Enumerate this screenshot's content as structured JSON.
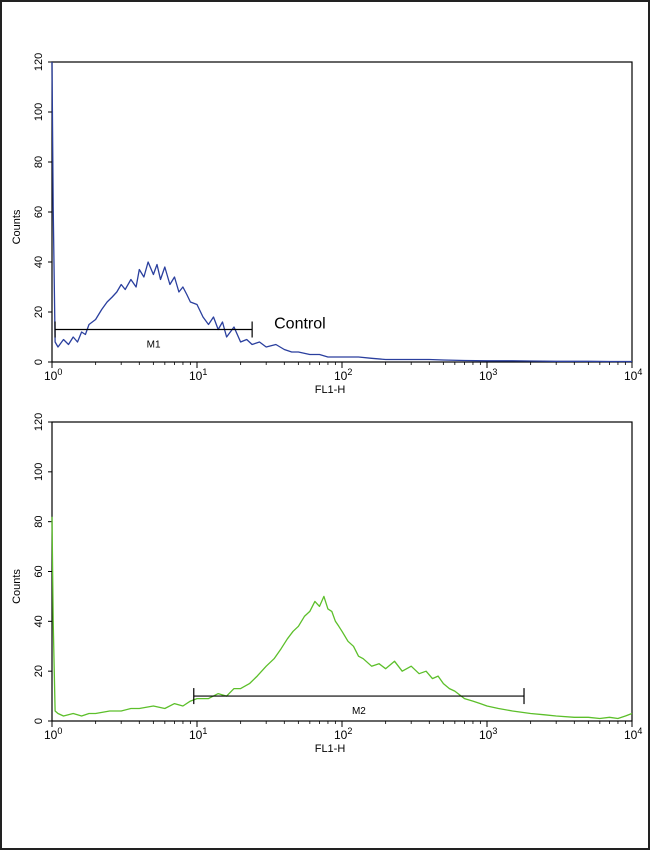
{
  "chart_data": [
    {
      "type": "line",
      "xlabel": "FL1-H",
      "ylabel": "Counts",
      "xscale": "log",
      "xlim": [
        1,
        10000
      ],
      "ylim": [
        0,
        120
      ],
      "x_ticks": [
        {
          "value": 1,
          "base": "10",
          "exp": "0"
        },
        {
          "value": 10,
          "base": "10",
          "exp": "1"
        },
        {
          "value": 100,
          "base": "10",
          "exp": "2"
        },
        {
          "value": 1000,
          "base": "10",
          "exp": "3"
        },
        {
          "value": 10000,
          "base": "10",
          "exp": "4"
        }
      ],
      "y_ticks": [
        0,
        20,
        40,
        60,
        80,
        100,
        120
      ],
      "annotation": "Control",
      "gate": {
        "label": "M1",
        "x_start": 1.05,
        "x_end": 24,
        "y": 13
      },
      "color": "#2a3f9e",
      "series": [
        {
          "x": [
            1.0,
            1.02,
            1.05,
            1.1,
            1.2,
            1.3,
            1.4,
            1.5,
            1.6,
            1.7,
            1.8,
            2.0,
            2.2,
            2.4,
            2.6,
            2.8,
            3.0,
            3.2,
            3.5,
            3.8,
            4.0,
            4.3,
            4.6,
            5.0,
            5.3,
            5.6,
            6.0,
            6.5,
            7.0,
            7.5,
            8.0,
            8.5,
            9.0,
            10,
            11,
            12,
            13,
            14,
            15,
            16,
            18,
            20,
            22,
            24,
            27,
            30,
            35,
            40,
            45,
            50,
            60,
            70,
            80,
            100,
            130,
            160,
            200,
            250,
            300,
            400,
            500,
            700,
            1000,
            1500,
            2000,
            3000,
            5000,
            7000,
            10000
          ],
          "y": [
            120,
            62,
            8,
            6,
            9,
            7,
            10,
            8,
            12,
            11,
            15,
            17,
            21,
            24,
            26,
            28,
            31,
            29,
            33,
            30,
            37,
            34,
            40,
            35,
            39,
            33,
            38,
            31,
            34,
            28,
            30,
            27,
            24,
            23,
            18,
            15,
            18,
            13,
            16,
            10,
            14,
            8,
            9,
            7,
            8,
            6,
            7,
            5,
            4,
            4,
            3,
            3,
            2,
            2,
            2,
            1.5,
            1,
            1,
            1,
            1,
            0.8,
            0.6,
            0.5,
            0.5,
            0.4,
            0.3,
            0.3,
            0.2,
            0.2
          ]
        }
      ]
    },
    {
      "type": "line",
      "xlabel": "FL1-H",
      "ylabel": "Counts",
      "xscale": "log",
      "xlim": [
        1,
        10000
      ],
      "ylim": [
        0,
        120
      ],
      "x_ticks": [
        {
          "value": 1,
          "base": "10",
          "exp": "0"
        },
        {
          "value": 10,
          "base": "10",
          "exp": "1"
        },
        {
          "value": 100,
          "base": "10",
          "exp": "2"
        },
        {
          "value": 1000,
          "base": "10",
          "exp": "3"
        },
        {
          "value": 10000,
          "base": "10",
          "exp": "4"
        }
      ],
      "y_ticks": [
        0,
        20,
        40,
        60,
        80,
        100,
        120
      ],
      "gate": {
        "label": "M2",
        "x_start": 9.5,
        "x_end": 1800,
        "y": 10
      },
      "color": "#5cbf2a",
      "series": [
        {
          "x": [
            1.0,
            1.02,
            1.05,
            1.1,
            1.2,
            1.4,
            1.6,
            1.8,
            2.0,
            2.5,
            3.0,
            3.5,
            4.0,
            5.0,
            6.0,
            7.0,
            8.0,
            9.0,
            10,
            12,
            14,
            16,
            18,
            20,
            23,
            26,
            30,
            34,
            38,
            42,
            46,
            50,
            55,
            60,
            65,
            70,
            75,
            80,
            85,
            90,
            95,
            100,
            110,
            120,
            130,
            140,
            160,
            180,
            200,
            230,
            260,
            300,
            340,
            380,
            420,
            460,
            500,
            550,
            600,
            700,
            800,
            900,
            1000,
            1200,
            1500,
            2000,
            2500,
            3000,
            4000,
            5000,
            6000,
            7000,
            8000,
            9000,
            10000
          ],
          "y": [
            82,
            40,
            4,
            3,
            2,
            3,
            2,
            3,
            3,
            4,
            4,
            5,
            5,
            6,
            5,
            7,
            6,
            8,
            9,
            9,
            11,
            10,
            13,
            13,
            15,
            18,
            22,
            25,
            29,
            33,
            36,
            38,
            42,
            44,
            48,
            46,
            50,
            45,
            44,
            40,
            38,
            36,
            32,
            30,
            26,
            25,
            22,
            23,
            21,
            24,
            20,
            22,
            19,
            20,
            17,
            18,
            15,
            13,
            12,
            9,
            8,
            7,
            6,
            5,
            4,
            3,
            2.5,
            2,
            1.5,
            1.5,
            1,
            1.5,
            1,
            2,
            3
          ]
        }
      ]
    }
  ]
}
